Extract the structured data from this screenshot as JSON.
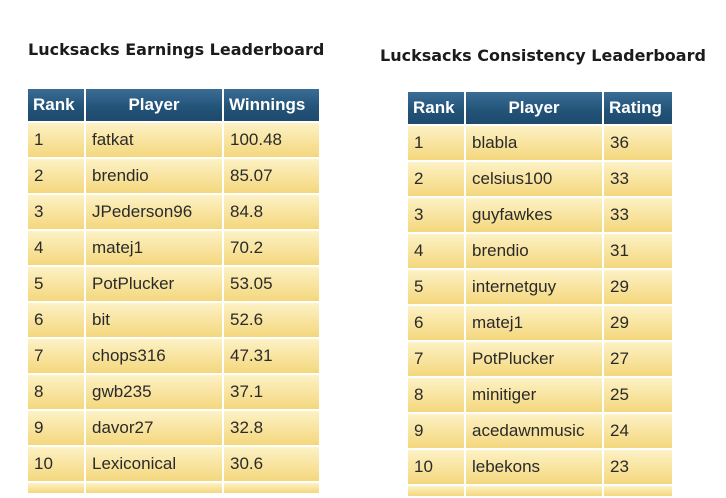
{
  "earnings": {
    "title": "Lucksacks Earnings Leaderboard",
    "headers": [
      "Rank",
      "Player",
      "Winnings"
    ],
    "rows": [
      [
        "1",
        "fatkat",
        "100.48"
      ],
      [
        "2",
        "brendio",
        "85.07"
      ],
      [
        "3",
        "JPederson96",
        "84.8"
      ],
      [
        "4",
        "matej1",
        "70.2"
      ],
      [
        "5",
        "PotPlucker",
        "53.05"
      ],
      [
        "6",
        "bit",
        "52.6"
      ],
      [
        "7",
        "chops316",
        "47.31"
      ],
      [
        "8",
        "gwb235",
        "37.1"
      ],
      [
        "9",
        "davor27",
        "32.8"
      ],
      [
        "10",
        "Lexiconical",
        "30.6"
      ]
    ]
  },
  "consistency": {
    "title": "Lucksacks Consistency Leaderboard",
    "headers": [
      "Rank",
      "Player",
      "Rating"
    ],
    "rows": [
      [
        "1",
        "blabla",
        "36"
      ],
      [
        "2",
        "celsius100",
        "33"
      ],
      [
        "3",
        "guyfawkes",
        "33"
      ],
      [
        "4",
        "brendio",
        "31"
      ],
      [
        "5",
        "internetguy",
        "29"
      ],
      [
        "6",
        "matej1",
        "29"
      ],
      [
        "7",
        "PotPlucker",
        "27"
      ],
      [
        "8",
        "minitiger",
        "25"
      ],
      [
        "9",
        "acedawnmusic",
        "24"
      ],
      [
        "10",
        "lebekons",
        "23"
      ]
    ]
  },
  "colors": {
    "header_bg": "#245479",
    "row_bg": "#f9e6a4",
    "title_text": "#1b1b1b"
  }
}
